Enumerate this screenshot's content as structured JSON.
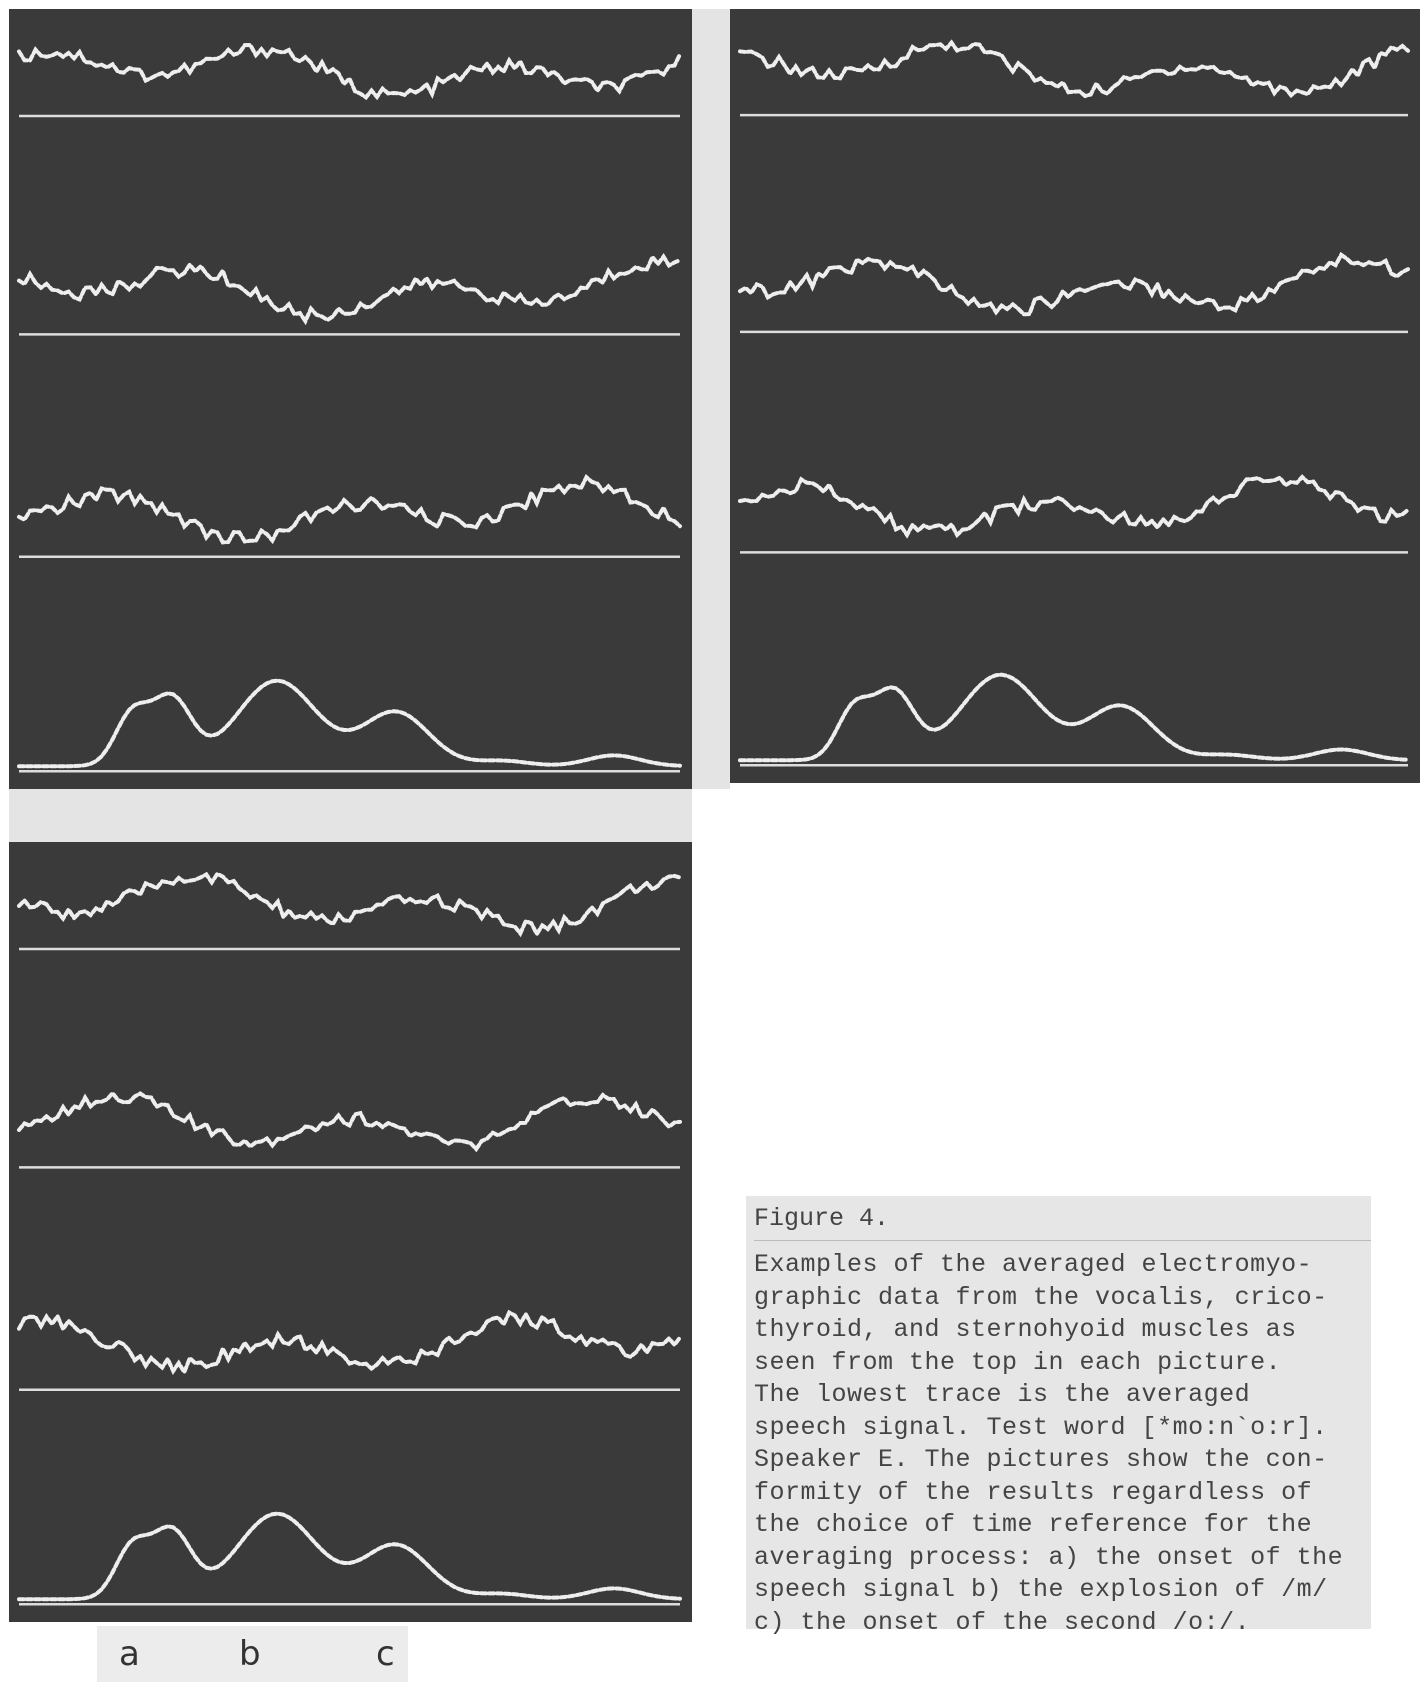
{
  "figure": {
    "label": "Figure 4.",
    "caption_lines": [
      "Examples of the averaged electromyo-",
      "graphic data from the vocalis, crico-",
      "thyroid, and sternohyoid muscles as",
      "seen from the top in each picture.",
      "The lowest trace is the averaged",
      "speech signal. Test word [*mo:n`o:r].",
      "Speaker E. The pictures show the con-",
      "formity of the results regardless of",
      "the choice of time reference for the",
      "averaging process: a) the onset of the",
      "speech signal b) the explosion of /m/",
      "c) the onset of the second /o:/."
    ]
  },
  "panel_labels": [
    "a",
    "b",
    "c"
  ]
}
